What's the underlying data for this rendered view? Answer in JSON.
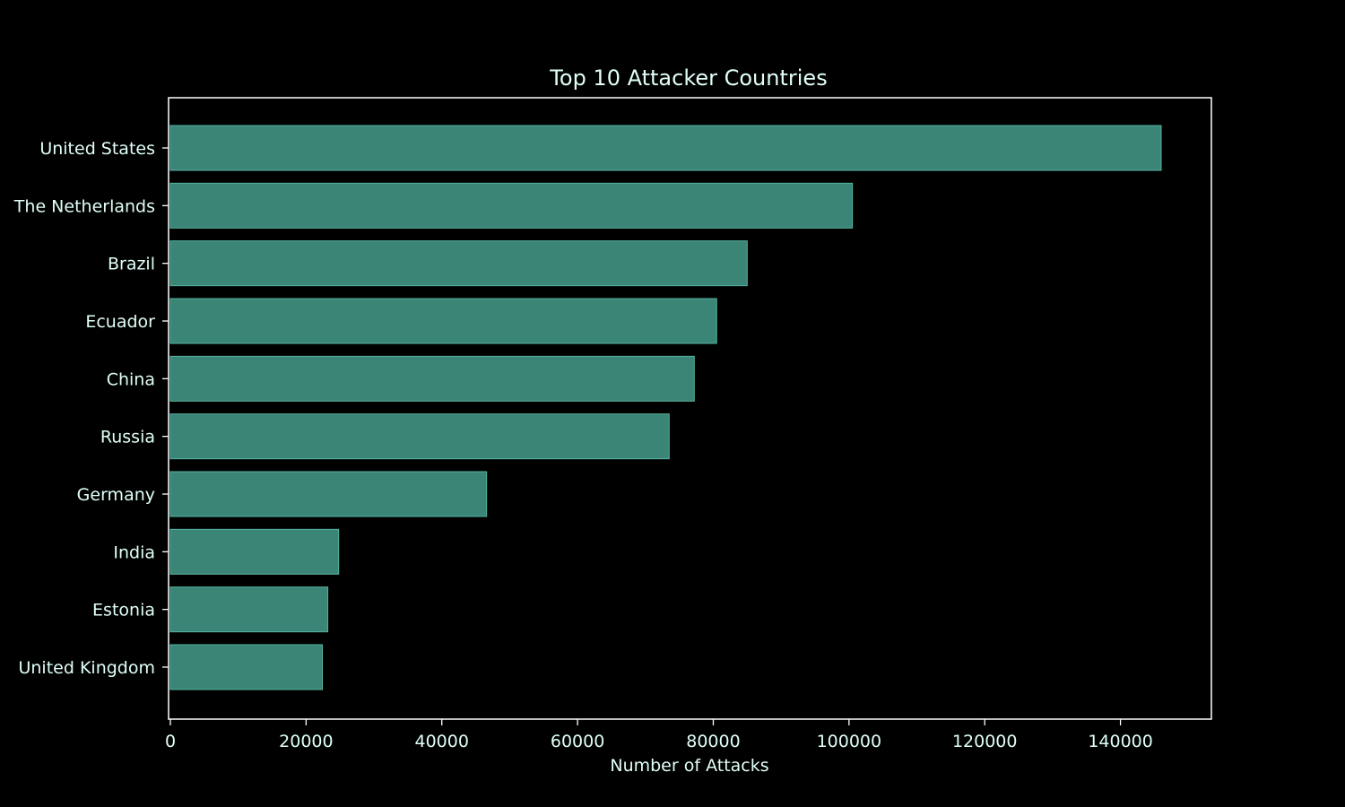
{
  "chart_data": {
    "type": "bar",
    "orientation": "horizontal",
    "title": "Top 10 Attacker Countries",
    "xlabel": "Number of Attacks",
    "ylabel": "",
    "categories": [
      "United States",
      "The Netherlands",
      "Brazil",
      "Ecuador",
      "China",
      "Russia",
      "Germany",
      "India",
      "Estonia",
      "United Kingdom"
    ],
    "values": [
      146000,
      100500,
      85000,
      80500,
      77200,
      73500,
      46600,
      24800,
      23200,
      22400
    ],
    "xlim": [
      0,
      154000
    ],
    "xticks": [
      0,
      20000,
      40000,
      60000,
      80000,
      100000,
      120000,
      140000
    ],
    "xtick_labels": [
      "0",
      "20000",
      "40000",
      "60000",
      "80000",
      "100000",
      "120000",
      "140000"
    ],
    "grid": false,
    "colors": {
      "background": "#000000",
      "bar_fill": "#3b8576",
      "bar_edge": "#56b3a1",
      "axis": "#ffffff",
      "text": "#e0fff8"
    }
  }
}
